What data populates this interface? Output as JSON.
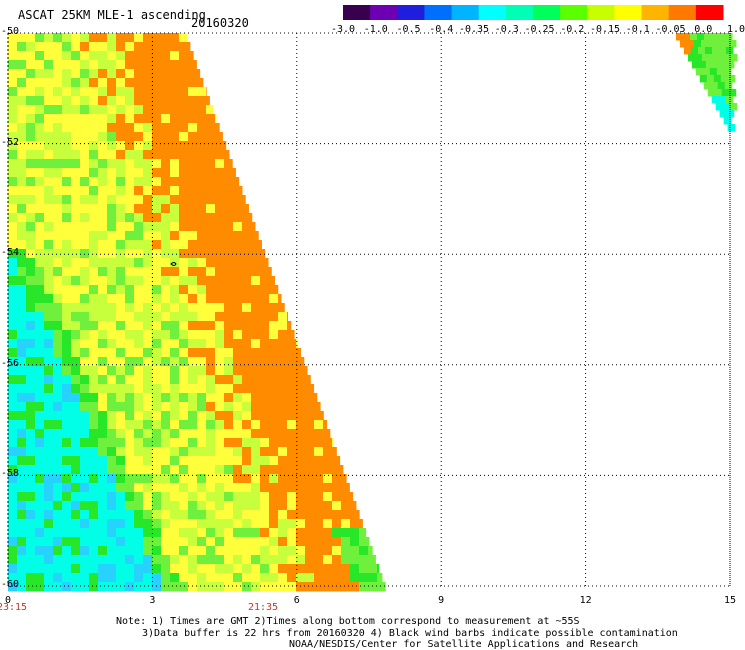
{
  "header": {
    "title": "ASCAT 25KM MLE-1 ascending",
    "date": "20160320"
  },
  "colorbar": {
    "labels": [
      "-3.0",
      "-1.0",
      "-0.5",
      "-0.4",
      "-0.35",
      "-0.3",
      "-0.25",
      "-0.2",
      "-0.15",
      "-0.1",
      "-0.05",
      "0.0",
      "1.0"
    ],
    "colors": [
      "#3a0050",
      "#6e00b4",
      "#1e1edc",
      "#006eff",
      "#00b4ff",
      "#00ffff",
      "#00ffb4",
      "#00ff5a",
      "#5aff00",
      "#c8ff00",
      "#ffff00",
      "#ffb400",
      "#ff7800",
      "#ff0000"
    ]
  },
  "map": {
    "y_labels": [
      "-50",
      "-52",
      "-54",
      "-56",
      "-58",
      "-60"
    ],
    "x_labels": [
      "0",
      "3",
      "6",
      "9",
      "12",
      "15"
    ],
    "time_labels": [
      "23:15",
      "21:35"
    ],
    "x_range": [
      0,
      15
    ],
    "y_range": [
      -60,
      -50
    ],
    "swath_colors": {
      "orange": "#ff8c00",
      "yellow": "#ffff3c",
      "yellowgreen": "#c8ff3c",
      "green": "#6ef03c",
      "lime": "#28e628",
      "cyan": "#00ffe6",
      "lightblue": "#28d2ff"
    }
  },
  "notes": {
    "line1": "Note: 1) Times are GMT 2)Times along bottom correspond to measurement at ~55S",
    "line2": "3)Data buffer is 22 hrs from 20160320 4) Black wind barbs indicate possible contamination",
    "line3": "NOAA/NESDIS/Center for Satellite Applications and Research"
  }
}
